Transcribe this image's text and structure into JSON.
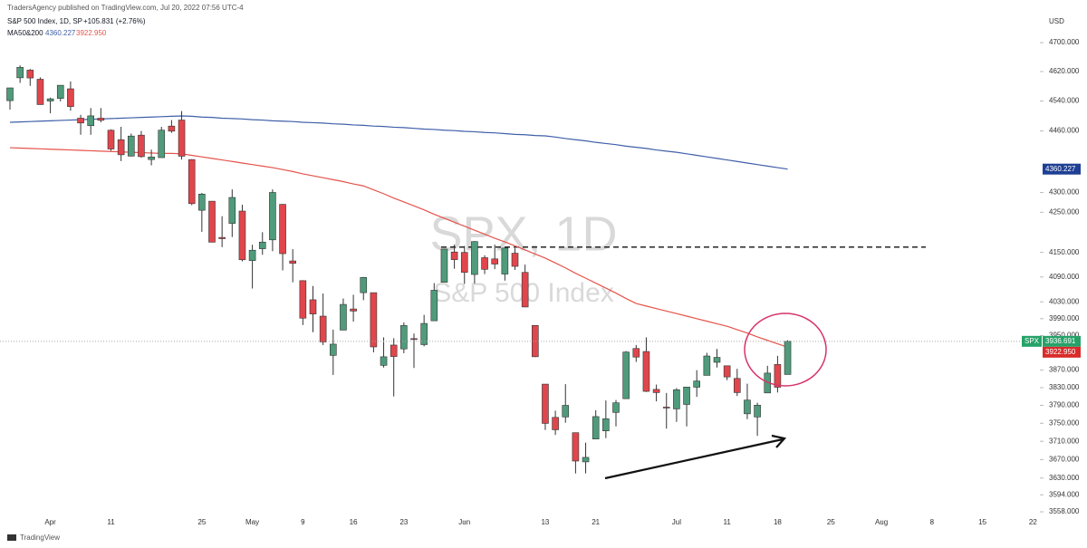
{
  "chart_data": {
    "type": "candlestick",
    "publisher": "TradersAgency published on TradingView.com, Jul 20, 2022 07:56 UTC-4",
    "title": "S&P 500 Index, 1D, SP",
    "change": "+105.831 (+2.76%)",
    "indicator": "MA50&200",
    "watermark": "SPX, 1D",
    "watermark_sub": "S&P 500 Index",
    "symbol_tag": "SPX",
    "currency": "USD",
    "brand": "TradingView",
    "log_scale": true,
    "grid": false,
    "up_color": "#4f9b7b",
    "down_color": "#e0464c",
    "x": [
      "Mar 28",
      "Mar 29",
      "Mar 30",
      "Mar 31",
      "Apr 1",
      "Apr 4",
      "Apr 5",
      "Apr 6",
      "Apr 7",
      "Apr 8",
      "Apr 11",
      "Apr 12",
      "Apr 13",
      "Apr 14",
      "Apr 18",
      "Apr 19",
      "Apr 20",
      "Apr 21",
      "Apr 22",
      "Apr 25",
      "Apr 26",
      "Apr 27",
      "Apr 28",
      "Apr 29",
      "May 2",
      "May 3",
      "May 4",
      "May 5",
      "May 6",
      "May 9",
      "May 10",
      "May 11",
      "May 12",
      "May 13",
      "May 16",
      "May 17",
      "May 18",
      "May 19",
      "May 20",
      "May 23",
      "May 24",
      "May 25",
      "May 26",
      "May 27",
      "May 31",
      "Jun 1",
      "Jun 2",
      "Jun 3",
      "Jun 6",
      "Jun 7",
      "Jun 8",
      "Jun 9",
      "Jun 10",
      "Jun 13",
      "Jun 14",
      "Jun 15",
      "Jun 16",
      "Jun 17",
      "Jun 21",
      "Jun 22",
      "Jun 23",
      "Jun 24",
      "Jun 27",
      "Jun 28",
      "Jun 29",
      "Jun 30",
      "Jul 1",
      "Jul 5",
      "Jul 6",
      "Jul 7",
      "Jul 8",
      "Jul 11",
      "Jul 12",
      "Jul 13",
      "Jul 14",
      "Jul 15",
      "Jul 18",
      "Jul 19"
    ],
    "open": [
      4541,
      4603,
      4624,
      4599,
      4540,
      4547,
      4573,
      4494,
      4474,
      4494,
      4462,
      4437,
      4394,
      4449,
      4385,
      4390,
      4473,
      4489,
      4385,
      4255,
      4278,
      4187,
      4222,
      4253,
      4130,
      4159,
      4181,
      4270,
      4129,
      4081,
      4035,
      3996,
      3904,
      3963,
      4013,
      4052,
      4052,
      3881,
      3928,
      3919,
      3943,
      3929,
      3985,
      4077,
      4151,
      4150,
      4096,
      4137,
      4134,
      4097,
      4148,
      4101,
      3974,
      3838,
      3763,
      3764,
      3729,
      3665,
      3715,
      3733,
      3774,
      3805,
      3920,
      3913,
      3826,
      3786,
      3782,
      3792,
      3831,
      3858,
      3888,
      3880,
      3851,
      3771,
      3764,
      3818,
      3883,
      3860
    ],
    "high": [
      4576,
      4637,
      4627,
      4604,
      4549,
      4583,
      4593,
      4503,
      4521,
      4521,
      4464,
      4471,
      4453,
      4460,
      4411,
      4471,
      4489,
      4513,
      4386,
      4299,
      4278,
      4240,
      4308,
      4269,
      4169,
      4200,
      4308,
      4271,
      4158,
      4082,
      4068,
      4050,
      3964,
      4038,
      4047,
      4090,
      4052,
      3946,
      3944,
      3981,
      3955,
      3999,
      4075,
      4159,
      4169,
      4166,
      4178,
      4143,
      4169,
      4164,
      4160,
      4120,
      3974,
      3838,
      3778,
      3838,
      3729,
      3707,
      3779,
      3801,
      3802,
      3914,
      3928,
      3946,
      3837,
      3818,
      3829,
      3832,
      3870,
      3910,
      3919,
      3880,
      3873,
      3839,
      3796,
      3880,
      3903,
      3939
    ],
    "low": [
      4517,
      4589,
      4581,
      4530,
      4507,
      4539,
      4514,
      4450,
      4450,
      4483,
      4408,
      4381,
      4393,
      4390,
      4370,
      4390,
      4455,
      4385,
      4268,
      4201,
      4175,
      4163,
      4188,
      4128,
      4062,
      4144,
      4153,
      4106,
      4077,
      3975,
      3958,
      3928,
      3859,
      3963,
      3983,
      4034,
      3911,
      3876,
      3810,
      3909,
      3875,
      3925,
      3985,
      4077,
      4110,
      4073,
      4074,
      4097,
      4109,
      4081,
      4107,
      4017,
      3900,
      3735,
      3724,
      3751,
      3640,
      3640,
      3715,
      3717,
      3743,
      3805,
      3889,
      3820,
      3799,
      3738,
      3753,
      3743,
      3809,
      3858,
      3876,
      3847,
      3811,
      3759,
      3722,
      3818,
      3819,
      3860
    ],
    "close": [
      4575.5,
      4631.6,
      4602.5,
      4530.4,
      4545.9,
      4582.6,
      4525.1,
      4481.2,
      4500.2,
      4488.3,
      4412.5,
      4397.5,
      4446.6,
      4392.6,
      4391.7,
      4462.2,
      4459.5,
      4393.7,
      4271.8,
      4296.1,
      4175.2,
      4183.9,
      4287.5,
      4131.9,
      4155.4,
      4175.5,
      4300.2,
      4146.9,
      4123.3,
      3991.2,
      4001.1,
      3935.2,
      3930.1,
      4023.9,
      4008,
      4088.9,
      3923.7,
      3900.8,
      3901.4,
      3973.8,
      3941.5,
      3978.7,
      4057.8,
      4158.2,
      4132.2,
      4101.2,
      4176.8,
      4108.5,
      4121.4,
      4160.7,
      4115.8,
      4017.8,
      3900.9,
      3749.6,
      3735.5,
      3790,
      3666.8,
      3674.8,
      3764.8,
      3759.9,
      3795.7,
      3911.7,
      3900.1,
      3821.6,
      3818.8,
      3785.4,
      3825.3,
      3831.4,
      3845.1,
      3902.6,
      3899.4,
      3854.4,
      3818.8,
      3801.8,
      3790.4,
      3863.2,
      3830.9,
      3936.691
    ],
    "series": [
      {
        "color": "#3f5fa8",
        "tag_color": "#1e3f94",
        "last_value_label": "4360.227",
        "values": [
          4483,
          4484,
          4485,
          4486,
          4487,
          4488,
          4489,
          4490,
          4491,
          4492,
          4493,
          4494,
          4495,
          4496,
          4497,
          4498,
          4499,
          4500,
          4499,
          4497,
          4496,
          4494,
          4493,
          4492,
          4490,
          4489,
          4487,
          4486,
          4485,
          4483,
          4482,
          4481,
          4479,
          4478,
          4476,
          4475,
          4473,
          4472,
          4470,
          4469,
          4467,
          4465,
          4464,
          4462,
          4461,
          4459,
          4458,
          4456,
          4455,
          4453,
          4451,
          4450,
          4448,
          4447,
          4444,
          4440,
          4437,
          4434,
          4430,
          4427,
          4424,
          4420,
          4417,
          4414,
          4410,
          4407,
          4404,
          4400,
          4396,
          4392,
          4388,
          4384,
          4380,
          4376,
          4372,
          4368,
          4364,
          4360.227
        ]
      },
      {
        "color": "#e5534b",
        "tag_color": "#d92b2b",
        "last_value_label": "3922.950",
        "values": [
          4416,
          4415,
          4414,
          4413,
          4412,
          4411,
          4410,
          4409,
          4408,
          4407,
          4406,
          4405,
          4404,
          4403,
          4402,
          4401,
          4401,
          4400,
          4396,
          4392,
          4388,
          4384,
          4380,
          4376,
          4372,
          4368,
          4364,
          4359,
          4354,
          4348,
          4343,
          4338,
          4333,
          4328,
          4322,
          4317,
          4307,
          4297,
          4286,
          4276,
          4266,
          4256,
          4245,
          4235,
          4225,
          4215,
          4205,
          4195,
          4185,
          4176,
          4166,
          4156,
          4146,
          4136,
          4124,
          4112,
          4099,
          4087,
          4075,
          4063,
          4051,
          4038,
          4026,
          4020,
          4014,
          4008,
          4002,
          3996,
          3990,
          3984,
          3978,
          3972,
          3964,
          3956,
          3947,
          3939,
          3931,
          3922.95
        ]
      }
    ],
    "last_tag_color": "#26a269",
    "resistance_level": 4163,
    "ylim": [
      3539,
      4774
    ],
    "yticks": [
      {
        "value": 4700,
        "label": "4700.000"
      },
      {
        "value": 4620,
        "label": "4620.000"
      },
      {
        "value": 4540,
        "label": "4540.000"
      },
      {
        "value": 4460,
        "label": "4460.000"
      },
      {
        "value": 4300,
        "label": "4300.000"
      },
      {
        "value": 4250,
        "label": "4250.000"
      },
      {
        "value": 4150,
        "label": "4150.000"
      },
      {
        "value": 4090,
        "label": "4090.000"
      },
      {
        "value": 4030,
        "label": "4030.000"
      },
      {
        "value": 3990,
        "label": "3990.000"
      },
      {
        "value": 3950,
        "label": "3950.000"
      },
      {
        "value": 3870,
        "label": "3870.000"
      },
      {
        "value": 3830,
        "label": "3830.000"
      },
      {
        "value": 3790,
        "label": "3790.000"
      },
      {
        "value": 3750,
        "label": "3750.000"
      },
      {
        "value": 3710,
        "label": "3710.000"
      },
      {
        "value": 3670,
        "label": "3670.000"
      },
      {
        "value": 3630,
        "label": "3630.000"
      },
      {
        "value": 3594,
        "label": "3594.000"
      },
      {
        "value": 3558,
        "label": "3558.000"
      }
    ],
    "xticks": [
      {
        "value": "Apr 1",
        "label": "Apr"
      },
      {
        "value": "Apr 11",
        "label": "11"
      },
      {
        "value": "Apr 25",
        "label": "25"
      },
      {
        "value": "May 2",
        "label": "May"
      },
      {
        "value": "May 9",
        "label": "9"
      },
      {
        "value": "May 16",
        "label": "16"
      },
      {
        "value": "May 23",
        "label": "23"
      },
      {
        "value": "Jun 1",
        "label": "Jun"
      },
      {
        "value": "Jun 13",
        "label": "13"
      },
      {
        "value": "Jun 21",
        "label": "21"
      },
      {
        "value": "Jul 1",
        "label": "Jul"
      },
      {
        "value": "Jul 11",
        "label": "11"
      },
      {
        "value": "Jul 18",
        "label": "18"
      },
      {
        "value": "Jul 25",
        "label": "25"
      },
      {
        "value": "Aug 1",
        "label": "Aug"
      },
      {
        "value": "Aug 8",
        "label": "8"
      },
      {
        "value": "Aug 15",
        "label": "15"
      },
      {
        "value": "Aug 22",
        "label": "22"
      }
    ]
  }
}
